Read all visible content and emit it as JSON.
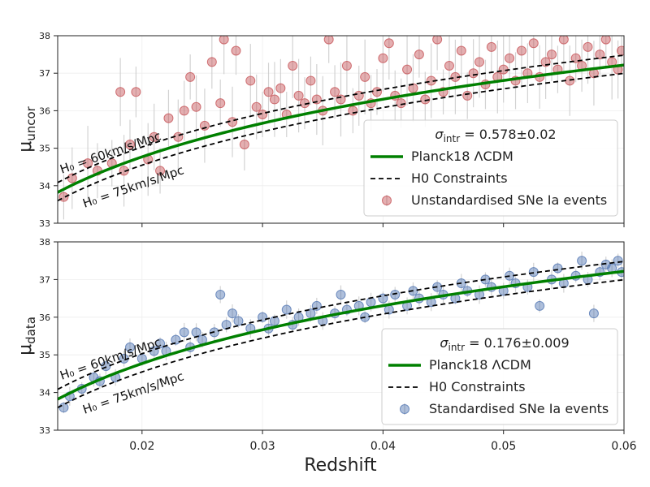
{
  "chart_data": [
    {
      "type": "scatter",
      "title": "",
      "ylabel_main": "μ",
      "ylabel_sub": "uncor",
      "xlim": [
        0.013,
        0.06
      ],
      "ylim": [
        33,
        38
      ],
      "yticks": [
        "33",
        "34",
        "35",
        "36",
        "37",
        "38"
      ],
      "grid": true,
      "legend_position": "lower-right",
      "sigma_label_prefix": "σ",
      "sigma_label_sub": "intr",
      "sigma_label_value": " = 0.578±0.02",
      "annotation_h60": "H₀ = 60km/s/Mpc",
      "annotation_h75": "H₀ = 75km/s/Mpc",
      "series": [
        {
          "name": "Planck18 ΛCDM",
          "kind": "curve",
          "color": "#008000",
          "H0": 67.7
        },
        {
          "name": "H0 Constraints",
          "kind": "dashed",
          "color": "#000000",
          "H0_values": [
            60,
            75
          ]
        },
        {
          "name": "Unstandardised SNe Ia events",
          "kind": "points",
          "color": "#c44e52",
          "points": [
            {
              "x": 0.0135,
              "y": 33.7
            },
            {
              "x": 0.0142,
              "y": 34.2
            },
            {
              "x": 0.0155,
              "y": 34.6
            },
            {
              "x": 0.0163,
              "y": 34.4
            },
            {
              "x": 0.0175,
              "y": 34.6
            },
            {
              "x": 0.0182,
              "y": 36.5
            },
            {
              "x": 0.0185,
              "y": 34.4
            },
            {
              "x": 0.019,
              "y": 35.1
            },
            {
              "x": 0.0195,
              "y": 36.5
            },
            {
              "x": 0.0205,
              "y": 34.7
            },
            {
              "x": 0.021,
              "y": 35.3
            },
            {
              "x": 0.0215,
              "y": 34.4
            },
            {
              "x": 0.0222,
              "y": 35.8
            },
            {
              "x": 0.023,
              "y": 35.3
            },
            {
              "x": 0.0235,
              "y": 36.0
            },
            {
              "x": 0.024,
              "y": 36.9
            },
            {
              "x": 0.0245,
              "y": 36.1
            },
            {
              "x": 0.0252,
              "y": 35.6
            },
            {
              "x": 0.0258,
              "y": 37.3
            },
            {
              "x": 0.0265,
              "y": 36.2
            },
            {
              "x": 0.0268,
              "y": 37.9
            },
            {
              "x": 0.0275,
              "y": 35.7
            },
            {
              "x": 0.0278,
              "y": 37.6
            },
            {
              "x": 0.0285,
              "y": 35.1
            },
            {
              "x": 0.029,
              "y": 36.8
            },
            {
              "x": 0.0295,
              "y": 36.1
            },
            {
              "x": 0.03,
              "y": 35.9
            },
            {
              "x": 0.0305,
              "y": 36.5
            },
            {
              "x": 0.031,
              "y": 36.3
            },
            {
              "x": 0.0315,
              "y": 36.6
            },
            {
              "x": 0.032,
              "y": 35.9
            },
            {
              "x": 0.0325,
              "y": 37.2
            },
            {
              "x": 0.033,
              "y": 36.4
            },
            {
              "x": 0.0335,
              "y": 36.2
            },
            {
              "x": 0.034,
              "y": 36.8
            },
            {
              "x": 0.0345,
              "y": 36.3
            },
            {
              "x": 0.035,
              "y": 36.0
            },
            {
              "x": 0.0355,
              "y": 37.9
            },
            {
              "x": 0.036,
              "y": 36.5
            },
            {
              "x": 0.0365,
              "y": 36.3
            },
            {
              "x": 0.037,
              "y": 37.2
            },
            {
              "x": 0.0375,
              "y": 36.0
            },
            {
              "x": 0.038,
              "y": 36.4
            },
            {
              "x": 0.0385,
              "y": 36.9
            },
            {
              "x": 0.039,
              "y": 36.2
            },
            {
              "x": 0.0395,
              "y": 36.5
            },
            {
              "x": 0.04,
              "y": 37.4
            },
            {
              "x": 0.0405,
              "y": 37.8
            },
            {
              "x": 0.041,
              "y": 36.4
            },
            {
              "x": 0.0415,
              "y": 36.2
            },
            {
              "x": 0.042,
              "y": 37.1
            },
            {
              "x": 0.0425,
              "y": 36.6
            },
            {
              "x": 0.043,
              "y": 37.5
            },
            {
              "x": 0.0435,
              "y": 36.3
            },
            {
              "x": 0.044,
              "y": 36.8
            },
            {
              "x": 0.0445,
              "y": 37.9
            },
            {
              "x": 0.045,
              "y": 36.5
            },
            {
              "x": 0.0455,
              "y": 37.2
            },
            {
              "x": 0.046,
              "y": 36.9
            },
            {
              "x": 0.0465,
              "y": 37.6
            },
            {
              "x": 0.047,
              "y": 36.4
            },
            {
              "x": 0.0475,
              "y": 37.0
            },
            {
              "x": 0.048,
              "y": 37.3
            },
            {
              "x": 0.0485,
              "y": 36.7
            },
            {
              "x": 0.049,
              "y": 37.7
            },
            {
              "x": 0.0495,
              "y": 36.9
            },
            {
              "x": 0.05,
              "y": 37.1
            },
            {
              "x": 0.0505,
              "y": 37.4
            },
            {
              "x": 0.051,
              "y": 36.8
            },
            {
              "x": 0.0515,
              "y": 37.6
            },
            {
              "x": 0.052,
              "y": 37.0
            },
            {
              "x": 0.0525,
              "y": 37.8
            },
            {
              "x": 0.053,
              "y": 36.9
            },
            {
              "x": 0.0535,
              "y": 37.3
            },
            {
              "x": 0.054,
              "y": 37.5
            },
            {
              "x": 0.0545,
              "y": 37.1
            },
            {
              "x": 0.055,
              "y": 37.9
            },
            {
              "x": 0.0555,
              "y": 36.8
            },
            {
              "x": 0.056,
              "y": 37.4
            },
            {
              "x": 0.0565,
              "y": 37.2
            },
            {
              "x": 0.057,
              "y": 37.7
            },
            {
              "x": 0.0575,
              "y": 37.0
            },
            {
              "x": 0.058,
              "y": 37.5
            },
            {
              "x": 0.0585,
              "y": 37.9
            },
            {
              "x": 0.059,
              "y": 37.3
            },
            {
              "x": 0.0595,
              "y": 37.1
            },
            {
              "x": 0.0598,
              "y": 37.6
            }
          ]
        }
      ]
    },
    {
      "type": "scatter",
      "title": "",
      "xlabel": "Redshift",
      "ylabel_main": "μ",
      "ylabel_sub": "data",
      "xlim": [
        0.013,
        0.06
      ],
      "ylim": [
        33,
        38
      ],
      "xticks": [
        0.02,
        0.03,
        0.04,
        0.05,
        0.06
      ],
      "xtick_labels": [
        "0.02",
        "0.03",
        "0.04",
        "0.05",
        "0.06"
      ],
      "yticks": [
        "33",
        "34",
        "35",
        "36",
        "37",
        "38"
      ],
      "grid": true,
      "legend_position": "lower-right",
      "sigma_label_prefix": "σ",
      "sigma_label_sub": "intr",
      "sigma_label_value": " = 0.176±0.009",
      "annotation_h60": "H₀ = 60km/s/Mpc",
      "annotation_h75": "H₀ = 75km/s/Mpc",
      "series": [
        {
          "name": "Planck18 ΛCDM",
          "kind": "curve",
          "color": "#008000",
          "H0": 67.7
        },
        {
          "name": "H0 Constraints",
          "kind": "dashed",
          "color": "#000000",
          "H0_values": [
            60,
            75
          ]
        },
        {
          "name": "Standardised SNe Ia events",
          "kind": "points",
          "color": "#4c72b0",
          "points": [
            {
              "x": 0.0135,
              "y": 33.6
            },
            {
              "x": 0.014,
              "y": 33.9
            },
            {
              "x": 0.015,
              "y": 34.1
            },
            {
              "x": 0.016,
              "y": 34.4
            },
            {
              "x": 0.0165,
              "y": 34.3
            },
            {
              "x": 0.017,
              "y": 34.7
            },
            {
              "x": 0.0178,
              "y": 34.4
            },
            {
              "x": 0.0185,
              "y": 34.9
            },
            {
              "x": 0.019,
              "y": 35.2
            },
            {
              "x": 0.02,
              "y": 34.9
            },
            {
              "x": 0.021,
              "y": 35.1
            },
            {
              "x": 0.0215,
              "y": 35.3
            },
            {
              "x": 0.022,
              "y": 35.1
            },
            {
              "x": 0.0228,
              "y": 35.4
            },
            {
              "x": 0.0235,
              "y": 35.6
            },
            {
              "x": 0.024,
              "y": 35.2
            },
            {
              "x": 0.0245,
              "y": 35.6
            },
            {
              "x": 0.025,
              "y": 35.4
            },
            {
              "x": 0.026,
              "y": 35.6
            },
            {
              "x": 0.0265,
              "y": 36.6
            },
            {
              "x": 0.027,
              "y": 35.8
            },
            {
              "x": 0.0275,
              "y": 36.1
            },
            {
              "x": 0.028,
              "y": 35.9
            },
            {
              "x": 0.029,
              "y": 35.7
            },
            {
              "x": 0.03,
              "y": 36.0
            },
            {
              "x": 0.0305,
              "y": 35.7
            },
            {
              "x": 0.031,
              "y": 35.9
            },
            {
              "x": 0.032,
              "y": 36.2
            },
            {
              "x": 0.0325,
              "y": 35.8
            },
            {
              "x": 0.033,
              "y": 36.0
            },
            {
              "x": 0.034,
              "y": 36.1
            },
            {
              "x": 0.0345,
              "y": 36.3
            },
            {
              "x": 0.035,
              "y": 35.9
            },
            {
              "x": 0.036,
              "y": 36.1
            },
            {
              "x": 0.0365,
              "y": 36.6
            },
            {
              "x": 0.037,
              "y": 36.2
            },
            {
              "x": 0.038,
              "y": 36.3
            },
            {
              "x": 0.0385,
              "y": 36.0
            },
            {
              "x": 0.039,
              "y": 36.4
            },
            {
              "x": 0.04,
              "y": 36.5
            },
            {
              "x": 0.0405,
              "y": 36.2
            },
            {
              "x": 0.041,
              "y": 36.6
            },
            {
              "x": 0.042,
              "y": 36.3
            },
            {
              "x": 0.0425,
              "y": 36.7
            },
            {
              "x": 0.043,
              "y": 36.5
            },
            {
              "x": 0.044,
              "y": 36.4
            },
            {
              "x": 0.0445,
              "y": 36.8
            },
            {
              "x": 0.045,
              "y": 36.6
            },
            {
              "x": 0.046,
              "y": 36.5
            },
            {
              "x": 0.0465,
              "y": 36.9
            },
            {
              "x": 0.047,
              "y": 36.7
            },
            {
              "x": 0.048,
              "y": 36.6
            },
            {
              "x": 0.0485,
              "y": 37.0
            },
            {
              "x": 0.049,
              "y": 36.8
            },
            {
              "x": 0.05,
              "y": 36.7
            },
            {
              "x": 0.0505,
              "y": 37.1
            },
            {
              "x": 0.051,
              "y": 36.9
            },
            {
              "x": 0.052,
              "y": 36.8
            },
            {
              "x": 0.0525,
              "y": 37.2
            },
            {
              "x": 0.053,
              "y": 36.3
            },
            {
              "x": 0.054,
              "y": 37.0
            },
            {
              "x": 0.0545,
              "y": 37.3
            },
            {
              "x": 0.055,
              "y": 36.9
            },
            {
              "x": 0.056,
              "y": 37.1
            },
            {
              "x": 0.0565,
              "y": 37.5
            },
            {
              "x": 0.057,
              "y": 37.0
            },
            {
              "x": 0.0575,
              "y": 36.1
            },
            {
              "x": 0.058,
              "y": 37.2
            },
            {
              "x": 0.0585,
              "y": 37.4
            },
            {
              "x": 0.059,
              "y": 37.3
            },
            {
              "x": 0.0595,
              "y": 37.5
            },
            {
              "x": 0.0598,
              "y": 37.2
            }
          ]
        }
      ]
    }
  ]
}
